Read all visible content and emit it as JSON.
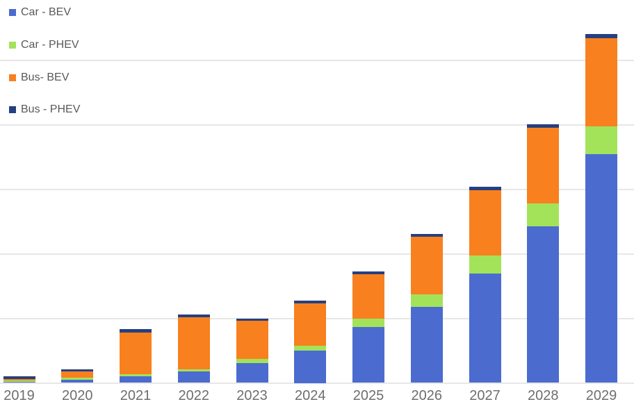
{
  "chart_data": {
    "type": "bar",
    "stacked": true,
    "title": "",
    "xlabel": "",
    "ylabel": "",
    "categories": [
      "2019",
      "2020",
      "2021",
      "2022",
      "2023",
      "2024",
      "2025",
      "2026",
      "2027",
      "2028",
      "2029"
    ],
    "series": [
      {
        "name": "Car - BEV",
        "color": "#4B6BCF",
        "values": [
          0.016,
          0.048,
          0.099,
          0.177,
          0.303,
          0.5,
          0.862,
          1.174,
          1.697,
          2.428,
          3.546
        ]
      },
      {
        "name": "Car - PHEV",
        "color": "#A3E35A",
        "values": [
          0.018,
          0.035,
          0.032,
          0.035,
          0.071,
          0.078,
          0.135,
          0.197,
          0.276,
          0.348,
          0.43
        ]
      },
      {
        "name": "Bus- BEV",
        "color": "#F8801F",
        "values": [
          0.025,
          0.097,
          0.645,
          0.806,
          0.591,
          0.65,
          0.682,
          0.896,
          1.014,
          1.172,
          1.362
        ]
      },
      {
        "name": "Bus - PHEV",
        "color": "#25407F",
        "values": [
          0.04,
          0.029,
          0.054,
          0.037,
          0.026,
          0.043,
          0.043,
          0.043,
          0.047,
          0.057,
          0.065
        ]
      }
    ],
    "value_unit": "gridline-intervals (y-axis tick labels not visible in image)",
    "ylim": [
      0,
      5.93
    ],
    "gridline_interval": 1,
    "grid": true,
    "legend_position": "top-left-overlay",
    "colors": {
      "background": "#FFFFFF",
      "gridline": "#E7E7E7",
      "axis_text": "#6E6E6E",
      "legend_text": "#595959"
    }
  }
}
